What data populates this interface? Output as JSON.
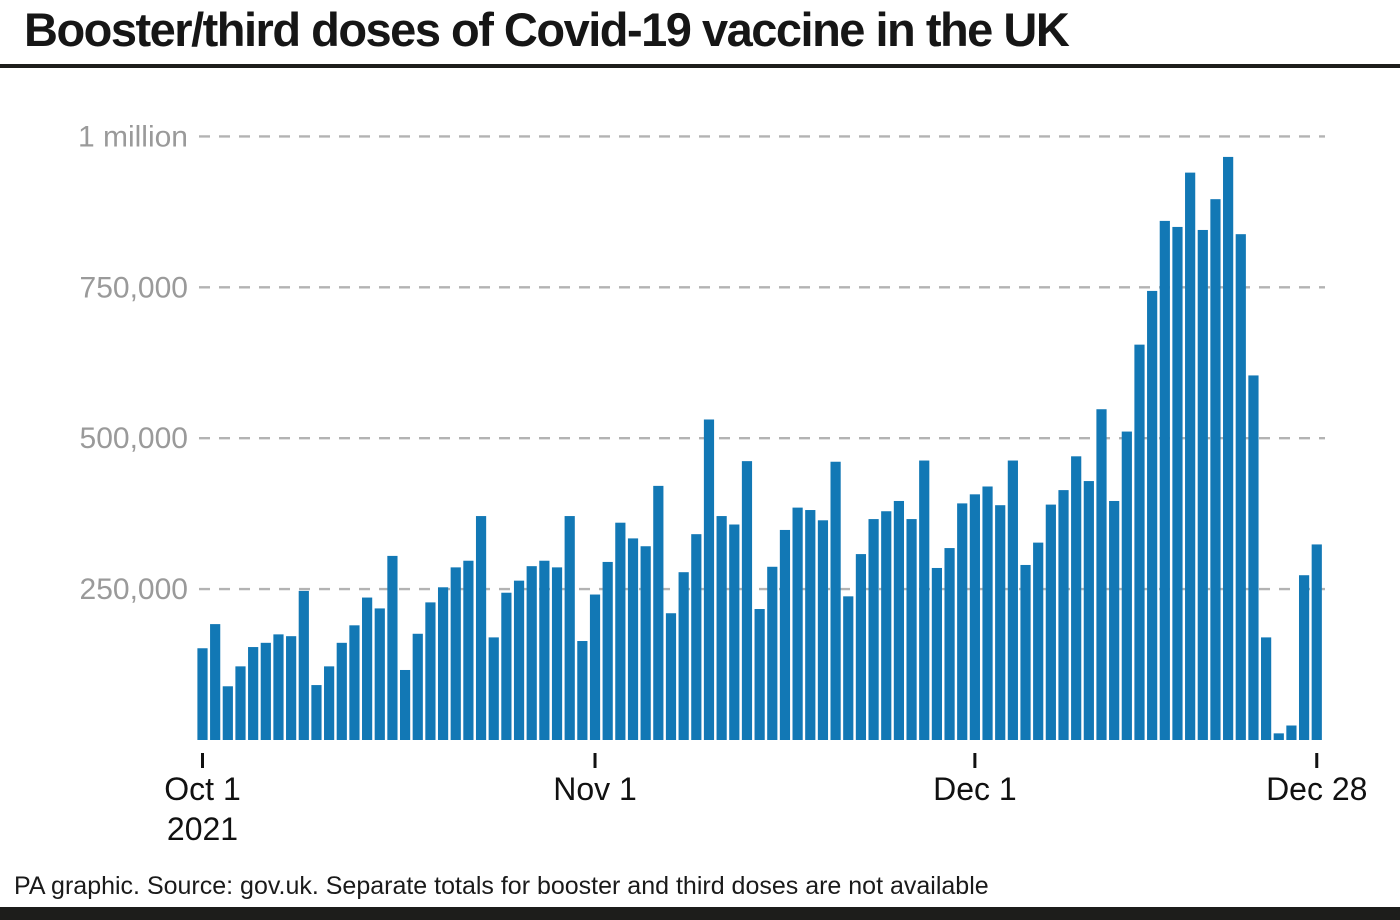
{
  "header": {
    "title": "Booster/third doses of Covid-19 vaccine in the UK"
  },
  "footer": {
    "credit": "PA graphic. Source: gov.uk. Separate totals for booster and third doses are not available"
  },
  "chart_data": {
    "type": "bar",
    "title": "Booster/third doses of Covid-19 vaccine in the UK",
    "xlabel": "",
    "ylabel": "",
    "ylim": [
      0,
      1040000
    ],
    "grid": "horizontal-dashed",
    "legend": "none",
    "categories": [
      "Oct 1",
      "Oct 2",
      "Oct 3",
      "Oct 4",
      "Oct 5",
      "Oct 6",
      "Oct 7",
      "Oct 8",
      "Oct 9",
      "Oct 10",
      "Oct 11",
      "Oct 12",
      "Oct 13",
      "Oct 14",
      "Oct 15",
      "Oct 16",
      "Oct 17",
      "Oct 18",
      "Oct 19",
      "Oct 20",
      "Oct 21",
      "Oct 22",
      "Oct 23",
      "Oct 24",
      "Oct 25",
      "Oct 26",
      "Oct 27",
      "Oct 28",
      "Oct 29",
      "Oct 30",
      "Oct 31",
      "Nov 1",
      "Nov 2",
      "Nov 3",
      "Nov 4",
      "Nov 5",
      "Nov 6",
      "Nov 7",
      "Nov 8",
      "Nov 9",
      "Nov 10",
      "Nov 11",
      "Nov 12",
      "Nov 13",
      "Nov 14",
      "Nov 15",
      "Nov 16",
      "Nov 17",
      "Nov 18",
      "Nov 19",
      "Nov 20",
      "Nov 21",
      "Nov 22",
      "Nov 23",
      "Nov 24",
      "Nov 25",
      "Nov 26",
      "Nov 27",
      "Nov 28",
      "Nov 29",
      "Nov 30",
      "Dec 1",
      "Dec 2",
      "Dec 3",
      "Dec 4",
      "Dec 5",
      "Dec 6",
      "Dec 7",
      "Dec 8",
      "Dec 9",
      "Dec 10",
      "Dec 11",
      "Dec 12",
      "Dec 13",
      "Dec 14",
      "Dec 15",
      "Dec 16",
      "Dec 17",
      "Dec 18",
      "Dec 19",
      "Dec 20",
      "Dec 21",
      "Dec 22",
      "Dec 23",
      "Dec 24",
      "Dec 25",
      "Dec 26",
      "Dec 27",
      "Dec 28"
    ],
    "values": [
      152000,
      192000,
      89000,
      122000,
      154000,
      161000,
      175000,
      172000,
      247000,
      91000,
      122000,
      161000,
      190000,
      236000,
      218000,
      305000,
      116000,
      176000,
      228000,
      253000,
      286000,
      297000,
      371000,
      170000,
      244000,
      264000,
      288000,
      297000,
      286000,
      371000,
      164000,
      241000,
      295000,
      360000,
      334000,
      321000,
      421000,
      210000,
      278000,
      341000,
      531000,
      371000,
      357000,
      462000,
      217000,
      287000,
      348000,
      385000,
      381000,
      364000,
      461000,
      238000,
      308000,
      366000,
      379000,
      396000,
      366000,
      463000,
      285000,
      318000,
      392000,
      407000,
      420000,
      389000,
      463000,
      290000,
      327000,
      390000,
      414000,
      470000,
      429000,
      548000,
      396000,
      511000,
      655000,
      744000,
      860000,
      850000,
      940000,
      845000,
      896000,
      966000,
      838000,
      604000,
      170000,
      11000,
      24000,
      273000,
      324000
    ],
    "y_ticks": [
      {
        "value": 250000,
        "label": "250,000"
      },
      {
        "value": 500000,
        "label": "500,000"
      },
      {
        "value": 750000,
        "label": "750,000"
      },
      {
        "value": 1000000,
        "label": "1 million"
      }
    ],
    "x_ticks": [
      {
        "index": 0,
        "label": "Oct 1",
        "sublabel": "2021"
      },
      {
        "index": 31,
        "label": "Nov 1",
        "sublabel": ""
      },
      {
        "index": 61,
        "label": "Dec 1",
        "sublabel": ""
      },
      {
        "index": 88,
        "label": "Dec 28",
        "sublabel": ""
      }
    ],
    "colors": {
      "bar": "#1278b5",
      "gridline": "#b3b3b3",
      "y_label": "#9a9a9a",
      "x_label": "#111111",
      "rule": "#1d1d1b"
    }
  }
}
